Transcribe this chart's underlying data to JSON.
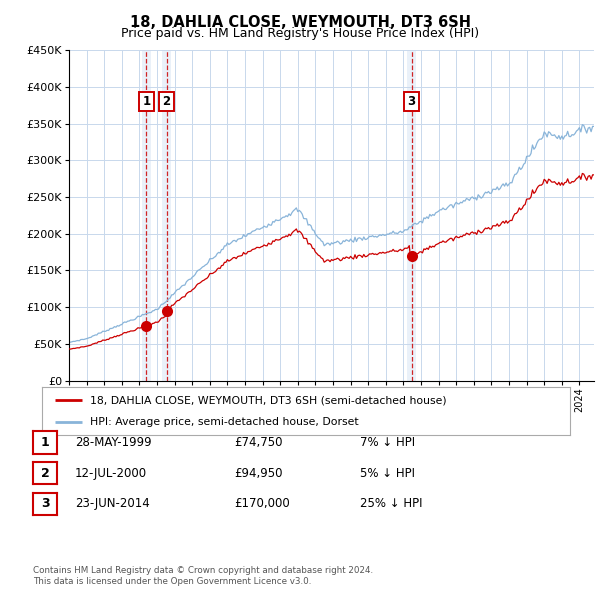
{
  "title": "18, DAHLIA CLOSE, WEYMOUTH, DT3 6SH",
  "subtitle": "Price paid vs. HM Land Registry's House Price Index (HPI)",
  "title_fontsize": 10.5,
  "subtitle_fontsize": 9,
  "xlim_start": 1995.0,
  "xlim_end": 2024.83,
  "ylim_min": 0,
  "ylim_max": 450000,
  "ytick_step": 50000,
  "hpi_color": "#89b4d9",
  "price_color": "#cc0000",
  "sale_marker_color": "#cc0000",
  "grid_color": "#c8d8ec",
  "sale_vline_color": "#cc0000",
  "sale_vband_color": "#dce8f5",
  "sale_vband_alpha": 0.6,
  "legend_label_price": "18, DAHLIA CLOSE, WEYMOUTH, DT3 6SH (semi-detached house)",
  "legend_label_hpi": "HPI: Average price, semi-detached house, Dorset",
  "sales": [
    {
      "num": 1,
      "date_str": "28-MAY-1999",
      "year": 1999.4,
      "price": 74750,
      "pct": "7%",
      "price_fmt": "£74,750"
    },
    {
      "num": 2,
      "date_str": "12-JUL-2000",
      "year": 2000.55,
      "price": 94950,
      "pct": "5%",
      "price_fmt": "£94,950"
    },
    {
      "num": 3,
      "date_str": "23-JUN-2014",
      "year": 2014.47,
      "price": 170000,
      "pct": "25%",
      "price_fmt": "£170,000"
    }
  ],
  "footnote1": "Contains HM Land Registry data © Crown copyright and database right 2024.",
  "footnote2": "This data is licensed under the Open Government Licence v3.0.",
  "background_color": "#ffffff"
}
